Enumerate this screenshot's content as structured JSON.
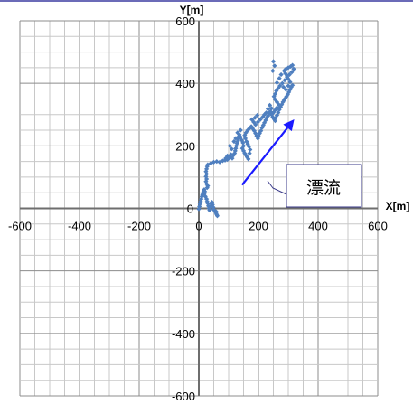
{
  "chart_data": {
    "type": "scatter",
    "xlabel": "X[m]",
    "ylabel": "Y[m]",
    "xlim": [
      -600,
      600
    ],
    "ylim": [
      -600,
      600
    ],
    "x_ticks": [
      "-600",
      "-400",
      "-200",
      "0",
      "200",
      "400",
      "600"
    ],
    "y_ticks": [
      "-600",
      "-400",
      "-200",
      "0",
      "200",
      "400",
      "600"
    ],
    "grid": true,
    "annotation": {
      "text": "漂流",
      "arrow_from": [
        145,
        75
      ],
      "arrow_to": [
        320,
        285
      ]
    },
    "series": [
      {
        "color": "#4f7fbf",
        "points": [
          [
            0,
            -2
          ],
          [
            2,
            6
          ],
          [
            4,
            14
          ],
          [
            6,
            22
          ],
          [
            8,
            30
          ],
          [
            10,
            38
          ],
          [
            12,
            44
          ],
          [
            14,
            50
          ],
          [
            16,
            56
          ],
          [
            18,
            60
          ],
          [
            20,
            54
          ],
          [
            18,
            46
          ],
          [
            22,
            38
          ],
          [
            26,
            30
          ],
          [
            28,
            22
          ],
          [
            30,
            16
          ],
          [
            32,
            8
          ],
          [
            34,
            0
          ],
          [
            36,
            -6
          ],
          [
            40,
            6
          ],
          [
            42,
            14
          ],
          [
            44,
            20
          ],
          [
            46,
            12
          ],
          [
            48,
            4
          ],
          [
            50,
            -4
          ],
          [
            54,
            -8
          ],
          [
            56,
            -12
          ],
          [
            58,
            -16
          ],
          [
            60,
            -20
          ],
          [
            62,
            -24
          ],
          [
            58,
            -10
          ],
          [
            28,
            66
          ],
          [
            30,
            72
          ],
          [
            26,
            78
          ],
          [
            24,
            86
          ],
          [
            26,
            94
          ],
          [
            24,
            102
          ],
          [
            26,
            110
          ],
          [
            24,
            118
          ],
          [
            26,
            126
          ],
          [
            28,
            134
          ],
          [
            30,
            140
          ],
          [
            40,
            144
          ],
          [
            50,
            148
          ],
          [
            60,
            150
          ],
          [
            70,
            148
          ],
          [
            80,
            152
          ],
          [
            88,
            154
          ],
          [
            96,
            156
          ],
          [
            100,
            160
          ],
          [
            104,
            166
          ],
          [
            108,
            172
          ],
          [
            112,
            160
          ],
          [
            116,
            170
          ],
          [
            120,
            176
          ],
          [
            122,
            184
          ],
          [
            124,
            192
          ],
          [
            126,
            200
          ],
          [
            128,
            208
          ],
          [
            130,
            214
          ],
          [
            132,
            222
          ],
          [
            134,
            230
          ],
          [
            136,
            236
          ],
          [
            140,
            228
          ],
          [
            144,
            218
          ],
          [
            148,
            210
          ],
          [
            150,
            200
          ],
          [
            146,
            192
          ],
          [
            150,
            184
          ],
          [
            154,
            176
          ],
          [
            158,
            170
          ],
          [
            162,
            164
          ],
          [
            166,
            158
          ],
          [
            170,
            176
          ],
          [
            172,
            188
          ],
          [
            168,
            198
          ],
          [
            164,
            206
          ],
          [
            160,
            214
          ],
          [
            156,
            224
          ],
          [
            154,
            234
          ],
          [
            158,
            242
          ],
          [
            164,
            250
          ],
          [
            170,
            256
          ],
          [
            176,
            262
          ],
          [
            180,
            256
          ],
          [
            186,
            248
          ],
          [
            190,
            240
          ],
          [
            194,
            232
          ],
          [
            198,
            224
          ],
          [
            200,
            232
          ],
          [
            204,
            240
          ],
          [
            208,
            248
          ],
          [
            212,
            258
          ],
          [
            216,
            266
          ],
          [
            220,
            274
          ],
          [
            224,
            282
          ],
          [
            228,
            290
          ],
          [
            232,
            296
          ],
          [
            236,
            304
          ],
          [
            240,
            310
          ],
          [
            244,
            300
          ],
          [
            248,
            292
          ],
          [
            252,
            286
          ],
          [
            256,
            280
          ],
          [
            258,
            290
          ],
          [
            262,
            298
          ],
          [
            266,
            306
          ],
          [
            270,
            316
          ],
          [
            274,
            324
          ],
          [
            278,
            332
          ],
          [
            282,
            340
          ],
          [
            286,
            346
          ],
          [
            290,
            352
          ],
          [
            294,
            358
          ],
          [
            298,
            364
          ],
          [
            302,
            372
          ],
          [
            306,
            380
          ],
          [
            310,
            388
          ],
          [
            314,
            394
          ],
          [
            306,
            404
          ],
          [
            300,
            414
          ],
          [
            296,
            424
          ],
          [
            290,
            432
          ],
          [
            286,
            440
          ],
          [
            292,
            446
          ],
          [
            300,
            450
          ],
          [
            308,
            454
          ],
          [
            314,
            458
          ],
          [
            318,
            446
          ],
          [
            312,
            436
          ],
          [
            304,
            428
          ],
          [
            296,
            420
          ],
          [
            288,
            410
          ],
          [
            280,
            400
          ],
          [
            272,
            392
          ],
          [
            266,
            384
          ],
          [
            260,
            376
          ],
          [
            256,
            366
          ],
          [
            252,
            358
          ],
          [
            256,
            348
          ],
          [
            262,
            340
          ],
          [
            268,
            332
          ],
          [
            262,
            322
          ],
          [
            256,
            314
          ],
          [
            250,
            306
          ],
          [
            244,
            320
          ],
          [
            238,
            330
          ],
          [
            232,
            318
          ],
          [
            226,
            306
          ],
          [
            220,
            300
          ],
          [
            214,
            292
          ],
          [
            206,
            284
          ],
          [
            198,
            276
          ],
          [
            190,
            268
          ],
          [
            184,
            276
          ],
          [
            178,
            284
          ],
          [
            188,
            290
          ],
          [
            196,
            298
          ],
          [
            250,
            470
          ],
          [
            254,
            456
          ],
          [
            248,
            440
          ],
          [
            262,
            402
          ],
          [
            270,
            416
          ],
          [
            276,
            428
          ],
          [
            284,
            388
          ],
          [
            292,
            380
          ],
          [
            300,
            392
          ],
          [
            104,
            200
          ],
          [
            110,
            190
          ],
          [
            96,
            168
          ],
          [
            90,
            160
          ],
          [
            118,
            214
          ],
          [
            124,
            224
          ],
          [
            130,
            242
          ],
          [
            140,
            250
          ]
        ]
      }
    ]
  }
}
